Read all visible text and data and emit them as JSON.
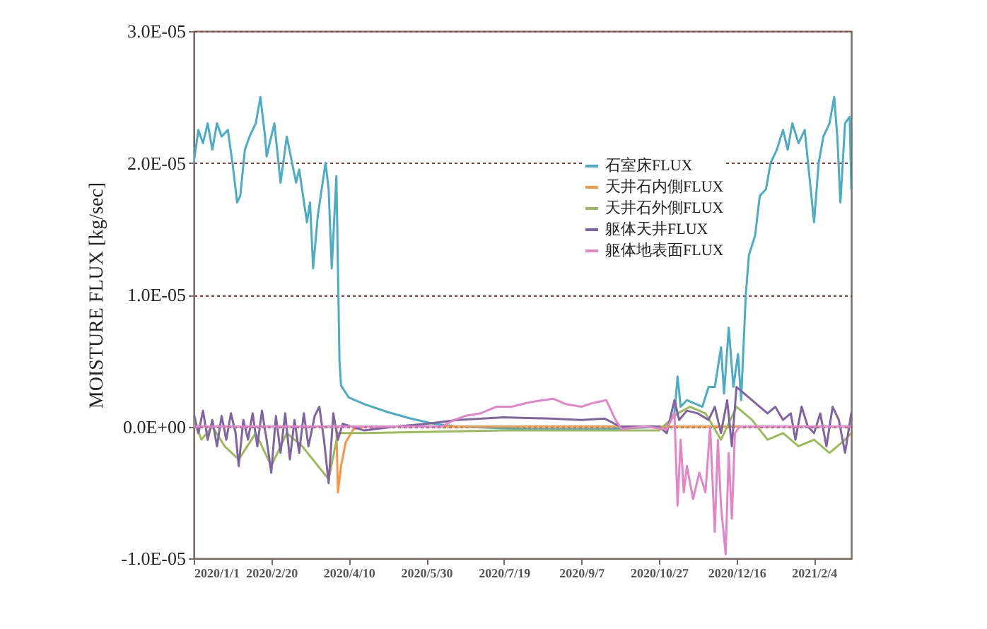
{
  "chart_data": {
    "type": "line",
    "ylabel": "MOISTURE FLUX [kg/sec]",
    "xlim": [
      "2020-01-01",
      "2021-02-28"
    ],
    "xticks": [
      {
        "value": "2020-01-01",
        "label": "2020/1/1"
      },
      {
        "value": "2020-02-20",
        "label": "2020/2/20"
      },
      {
        "value": "2020-04-10",
        "label": "2020/4/10"
      },
      {
        "value": "2020-05-30",
        "label": "2020/5/30"
      },
      {
        "value": "2020-07-19",
        "label": "2020/7/19"
      },
      {
        "value": "2020-09-07",
        "label": "2020/9/7"
      },
      {
        "value": "2020-10-27",
        "label": "2020/10/27"
      },
      {
        "value": "2020-12-16",
        "label": "2020/12/16"
      },
      {
        "value": "2021-02-04",
        "label": "2021/2/4"
      }
    ],
    "ylim": [
      -1e-05,
      3e-05
    ],
    "yticks": [
      {
        "value": -1e-05,
        "label": "-1.0E-05"
      },
      {
        "value": 0,
        "label": "0.0E+00"
      },
      {
        "value": 1e-05,
        "label": "1.0E-05"
      },
      {
        "value": 2e-05,
        "label": "2.0E-05"
      },
      {
        "value": 3e-05,
        "label": "3.0E-05"
      }
    ],
    "grid": "y",
    "legend": "top right",
    "line_style": "solid",
    "marker": "none",
    "series": [
      {
        "name": "石室床FLUX",
        "color": "#4bacc6",
        "x": [
          "2020-01-01",
          "2020-01-04",
          "2020-01-07",
          "2020-01-10",
          "2020-01-13",
          "2020-01-16",
          "2020-01-19",
          "2020-01-23",
          "2020-01-26",
          "2020-01-29",
          "2020-01-31",
          "2020-02-03",
          "2020-02-06",
          "2020-02-10",
          "2020-02-13",
          "2020-02-16",
          "2020-02-17",
          "2020-02-22",
          "2020-02-26",
          "2020-03-01",
          "2020-03-07",
          "2020-03-09",
          "2020-03-14",
          "2020-03-16",
          "2020-03-18",
          "2020-03-21",
          "2020-03-26",
          "2020-03-28",
          "2020-03-30",
          "2020-04-02",
          "2020-04-04",
          "2020-04-05",
          "2020-04-10",
          "2020-04-20",
          "2020-05-05",
          "2020-05-20",
          "2020-06-04",
          "2020-06-19",
          "2020-08-03",
          "2020-09-22",
          "2020-11-01",
          "2020-11-06",
          "2020-11-08",
          "2020-11-10",
          "2020-11-14",
          "2020-11-24",
          "2020-11-28",
          "2020-12-02",
          "2020-12-06",
          "2020-12-08",
          "2020-12-11",
          "2020-12-14",
          "2020-12-17",
          "2020-12-19",
          "2020-12-22",
          "2020-12-24",
          "2020-12-28",
          "2020-12-31",
          "2021-01-04",
          "2021-01-07",
          "2021-01-11",
          "2021-01-15",
          "2021-01-18",
          "2021-01-21",
          "2021-01-25",
          "2021-01-29",
          "2021-02-01",
          "2021-02-04",
          "2021-02-07",
          "2021-02-10",
          "2021-02-14",
          "2021-02-17",
          "2021-02-19",
          "2021-02-21",
          "2021-02-24",
          "2021-02-27",
          "2021-02-28"
        ],
        "values": [
          2e-05,
          2.25e-05,
          2.15e-05,
          2.3e-05,
          2.1e-05,
          2.3e-05,
          2.2e-05,
          2.25e-05,
          2e-05,
          1.7e-05,
          1.75e-05,
          2.1e-05,
          2.2e-05,
          2.3e-05,
          2.5e-05,
          2.2e-05,
          2.05e-05,
          2.3e-05,
          1.85e-05,
          2.2e-05,
          1.85e-05,
          1.95e-05,
          1.55e-05,
          1.7e-05,
          1.2e-05,
          1.6e-05,
          2e-05,
          1.8e-05,
          1.2e-05,
          1.9e-05,
          5e-06,
          3.1e-06,
          2.2e-06,
          1.7e-06,
          1.1e-06,
          6e-07,
          2e-07,
          0.0,
          -2e-07,
          -2e-07,
          0.0,
          1e-06,
          3.8e-06,
          1.5e-06,
          2e-06,
          1.5e-06,
          3e-06,
          3e-06,
          6e-06,
          2.5e-06,
          7.5e-06,
          3e-06,
          5.5e-06,
          2e-06,
          1e-05,
          1.3e-05,
          1.45e-05,
          1.75e-05,
          1.8e-05,
          2e-05,
          2.1e-05,
          2.25e-05,
          2.1e-05,
          2.3e-05,
          2.15e-05,
          2.25e-05,
          1.9e-05,
          1.55e-05,
          2e-05,
          2.2e-05,
          2.3e-05,
          2.5e-05,
          2.2e-05,
          1.7e-05,
          2.3e-05,
          2.35e-05,
          1.8e-05
        ]
      },
      {
        "name": "天井石内側FLUX",
        "color": "#f79646",
        "x": [
          "2020-01-01",
          "2020-04-02",
          "2020-04-03",
          "2020-04-05",
          "2020-04-08",
          "2020-04-13",
          "2020-04-20",
          "2021-02-28"
        ],
        "values": [
          0.0,
          0.0,
          -5e-06,
          -3e-06,
          -1.2e-06,
          -2e-07,
          0.0,
          0.0
        ]
      },
      {
        "name": "天井石外側FLUX",
        "color": "#9bbb59",
        "x": [
          "2020-01-01",
          "2020-01-06",
          "2020-01-13",
          "2020-01-21",
          "2020-01-30",
          "2020-02-10",
          "2020-02-20",
          "2020-03-01",
          "2020-03-11",
          "2020-03-28",
          "2020-04-03",
          "2020-04-20",
          "2020-07-19",
          "2020-10-27",
          "2020-11-08",
          "2020-11-16",
          "2020-11-26",
          "2020-12-06",
          "2020-12-16",
          "2020-12-26",
          "2021-01-05",
          "2021-01-15",
          "2021-01-25",
          "2021-02-04",
          "2021-02-14",
          "2021-02-24",
          "2021-02-28"
        ],
        "values": [
          5e-07,
          -1e-06,
          0.0,
          -1.5e-06,
          -2.5e-06,
          -5e-07,
          -3e-06,
          -5e-07,
          -1.5e-06,
          -4e-06,
          -5e-07,
          -5e-07,
          -3e-07,
          -3e-07,
          1e-06,
          1.5e-06,
          1e-06,
          -1e-06,
          1.5e-06,
          5e-07,
          -1e-06,
          -5e-07,
          -1.5e-06,
          -1e-06,
          -2e-06,
          -1e-06,
          -5e-07
        ]
      },
      {
        "name": "躯体天井FLUX",
        "color": "#8064a2",
        "x": [
          "2020-01-01",
          "2020-01-04",
          "2020-01-07",
          "2020-01-10",
          "2020-01-13",
          "2020-01-16",
          "2020-01-19",
          "2020-01-22",
          "2020-01-25",
          "2020-01-28",
          "2020-01-30",
          "2020-02-02",
          "2020-02-05",
          "2020-02-08",
          "2020-02-11",
          "2020-02-14",
          "2020-02-17",
          "2020-02-20",
          "2020-02-23",
          "2020-02-26",
          "2020-02-29",
          "2020-03-03",
          "2020-03-06",
          "2020-03-09",
          "2020-03-12",
          "2020-03-15",
          "2020-03-19",
          "2020-03-22",
          "2020-03-25",
          "2020-03-28",
          "2020-03-31",
          "2020-04-03",
          "2020-04-06",
          "2020-04-20",
          "2020-05-10",
          "2020-05-30",
          "2020-06-19",
          "2020-07-19",
          "2020-08-18",
          "2020-09-07",
          "2020-09-22",
          "2020-10-02",
          "2020-10-27",
          "2020-11-01",
          "2020-11-06",
          "2020-11-09",
          "2020-11-14",
          "2020-11-21",
          "2020-11-28",
          "2020-12-02",
          "2020-12-06",
          "2020-12-10",
          "2020-12-13",
          "2020-12-16",
          "2020-12-21",
          "2020-12-26",
          "2020-12-31",
          "2021-01-05",
          "2021-01-10",
          "2021-01-15",
          "2021-01-20",
          "2021-01-23",
          "2021-01-27",
          "2021-01-31",
          "2021-02-04",
          "2021-02-08",
          "2021-02-12",
          "2021-02-16",
          "2021-02-20",
          "2021-02-24",
          "2021-02-28"
        ],
        "values": [
          1e-06,
          -5e-07,
          1.2e-06,
          -1e-06,
          5e-07,
          -1.5e-06,
          8e-07,
          -1e-06,
          1e-06,
          -5e-07,
          -3e-06,
          5e-07,
          -1e-06,
          1e-06,
          -1.5e-06,
          1.2e-06,
          -1e-06,
          -3.5e-06,
          8e-07,
          -2e-06,
          1e-06,
          -2.5e-06,
          5e-07,
          -2e-06,
          1e-06,
          -1.5e-06,
          8e-07,
          1.5e-06,
          -1e-06,
          -4.3e-06,
          1e-06,
          -1e-06,
          2e-07,
          -3e-07,
          0.0,
          2e-07,
          5e-07,
          7e-07,
          6e-07,
          5e-07,
          6e-07,
          0.0,
          0.0,
          -5e-07,
          2e-06,
          5e-07,
          1.2e-06,
          1e-06,
          5e-07,
          1.5e-06,
          -5e-07,
          2e-06,
          -1.5e-06,
          3e-06,
          2.5e-06,
          2e-06,
          1.5e-06,
          1e-06,
          1.5e-06,
          5e-07,
          1e-06,
          -1e-06,
          1.5e-06,
          0.0,
          -5e-07,
          1e-06,
          -1.5e-06,
          1.5e-06,
          5e-07,
          -2e-06,
          1e-06
        ]
      },
      {
        "name": "躯体地表面FLUX",
        "color": "#e385c8",
        "x": [
          "2020-01-01",
          "2020-06-09",
          "2020-06-17",
          "2020-06-24",
          "2020-07-04",
          "2020-07-14",
          "2020-07-24",
          "2020-08-03",
          "2020-08-13",
          "2020-08-20",
          "2020-08-28",
          "2020-09-07",
          "2020-09-15",
          "2020-09-23",
          "2020-09-29",
          "2020-10-03",
          "2020-10-17",
          "2020-11-01",
          "2020-11-06",
          "2020-11-08",
          "2020-11-10",
          "2020-11-12",
          "2020-11-14",
          "2020-11-18",
          "2020-11-22",
          "2020-11-26",
          "2020-11-29",
          "2020-12-02",
          "2020-12-04",
          "2020-12-06",
          "2020-12-09",
          "2020-12-11",
          "2020-12-13",
          "2020-12-15",
          "2020-12-18",
          "2021-02-28"
        ],
        "values": [
          0.0,
          0.0,
          5e-07,
          8e-07,
          1e-06,
          1.5e-06,
          1.5e-06,
          1.8e-06,
          2e-06,
          2.1e-06,
          1.7e-06,
          1.5e-06,
          1.8e-06,
          2e-06,
          5e-07,
          -2e-07,
          0.0,
          -2e-07,
          1e-06,
          -6e-06,
          -1e-06,
          -5e-06,
          -3e-06,
          -5.5e-06,
          -3.5e-06,
          -5e-06,
          0.0,
          -8e-06,
          -1e-06,
          -6e-06,
          -9.7e-06,
          -2e-06,
          -7e-06,
          -5e-07,
          0.0,
          0.0
        ]
      }
    ]
  }
}
